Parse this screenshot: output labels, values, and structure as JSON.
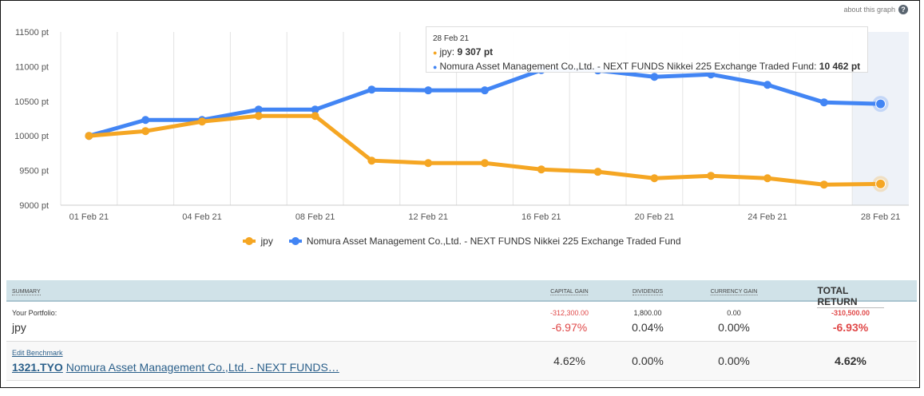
{
  "header": {
    "about_label": "about this graph",
    "help_icon": "?"
  },
  "tooltip": {
    "date": "28 Feb 21",
    "items": [
      {
        "name": "jpy",
        "value": "9 307 pt"
      },
      {
        "name": "Nomura Asset Management Co.,Ltd. - NEXT FUNDS Nikkei 225 Exchange Traded Fund",
        "value": "10 462 pt"
      }
    ]
  },
  "chart_data": {
    "type": "line",
    "x": [
      "01 Feb 21",
      "",
      "04 Feb 21",
      "",
      "08 Feb 21",
      "",
      "12 Feb 21",
      "",
      "16 Feb 21",
      "",
      "20 Feb 21",
      "",
      "24 Feb 21",
      "",
      "28 Feb 21"
    ],
    "xtick_labels": [
      "01 Feb 21",
      "04 Feb 21",
      "08 Feb 21",
      "12 Feb 21",
      "16 Feb 21",
      "20 Feb 21",
      "24 Feb 21",
      "28 Feb 21"
    ],
    "ytick_labels": [
      "11500 pt",
      "11000 pt",
      "10500 pt",
      "10000 pt",
      "9500 pt",
      "9000 pt"
    ],
    "ylim": [
      9000,
      11500
    ],
    "series": [
      {
        "name": "jpy",
        "color": "#f5a623",
        "values": [
          10000,
          10069,
          10207,
          10288,
          10288,
          9643,
          9608,
          9608,
          9516,
          9482,
          9389,
          9424,
          9389,
          9297,
          9307
        ]
      },
      {
        "name": "Nomura Asset Management Co.,Ltd. - NEXT FUNDS Nikkei 225 Exchange Traded Fund",
        "color": "#4285f4",
        "values": [
          10000,
          10230,
          10230,
          10380,
          10380,
          10668,
          10657,
          10657,
          10950,
          10945,
          10852,
          10887,
          10737,
          10484,
          10462
        ]
      }
    ],
    "legend": "bottom-center",
    "grid": "vertical"
  },
  "summary": {
    "headers": {
      "summary": "SUMMARY",
      "capital_gain": "CAPITAL GAIN",
      "dividends": "DIVIDENDS",
      "currency_gain": "CURRENCY GAIN",
      "total_return": "TOTAL RETURN"
    },
    "portfolio": {
      "label": "Your Portfolio:",
      "name": "jpy",
      "capital_gain_abs": "-312,300.00",
      "capital_gain_pct": "-6.97%",
      "dividends_abs": "1,800.00",
      "dividends_pct": "0.04%",
      "currency_abs": "0.00",
      "currency_pct": "0.00%",
      "total_abs": "-310,500.00",
      "total_pct": "-6.93%"
    },
    "benchmark": {
      "edit_label": "Edit Benchmark",
      "ticker": "1321.TYO",
      "name": "Nomura Asset Management Co.,Ltd. - NEXT FUNDS…",
      "capital_gain_pct": "4.62%",
      "dividends_pct": "0.00%",
      "currency_pct": "0.00%",
      "total_pct": "4.62%"
    }
  }
}
